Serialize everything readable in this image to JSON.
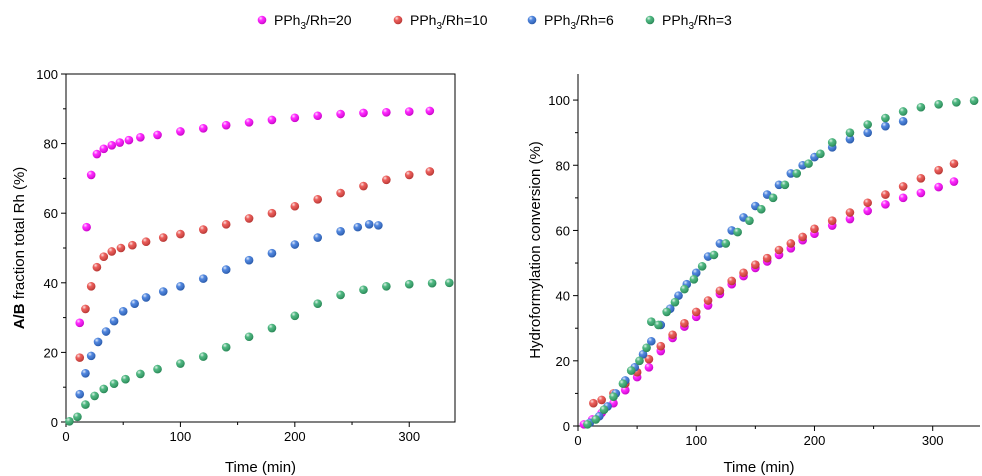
{
  "legend": [
    {
      "base": "PPh",
      "sub": "3",
      "rest": "/Rh=20",
      "color": "#ff00ff"
    },
    {
      "base": "PPh",
      "sub": "3",
      "rest": "/Rh=10",
      "color": "#e8403c"
    },
    {
      "base": "PPh",
      "sub": "3",
      "rest": "/Rh=6",
      "color": "#2f6fd8"
    },
    {
      "base": "PPh",
      "sub": "3",
      "rest": "/Rh=3",
      "color": "#2eaa6a"
    }
  ],
  "chart_data": [
    {
      "type": "scatter",
      "xlabel": "Time (min)",
      "ylabel_bold": "A/B",
      "ylabel_rest": " fraction total Rh (%)",
      "xlim": [
        0,
        340
      ],
      "ylim": [
        0,
        100
      ],
      "xticks": [
        0,
        100,
        200,
        300
      ],
      "yticks": [
        0,
        20,
        40,
        60,
        80,
        100
      ],
      "series": [
        {
          "name": "PPh3/Rh=20",
          "color": "#ff00ff",
          "points": [
            [
              12,
              28.5
            ],
            [
              18,
              56
            ],
            [
              22,
              71
            ],
            [
              27,
              77
            ],
            [
              33,
              78.5
            ],
            [
              40,
              79.5
            ],
            [
              47,
              80.3
            ],
            [
              55,
              81
            ],
            [
              65,
              81.8
            ],
            [
              80,
              82.5
            ],
            [
              100,
              83.5
            ],
            [
              120,
              84.4
            ],
            [
              140,
              85.3
            ],
            [
              160,
              86.1
            ],
            [
              180,
              86.8
            ],
            [
              200,
              87.4
            ],
            [
              220,
              88
            ],
            [
              240,
              88.5
            ],
            [
              260,
              88.8
            ],
            [
              280,
              89
            ],
            [
              300,
              89.2
            ],
            [
              318,
              89.4
            ]
          ]
        },
        {
          "name": "PPh3/Rh=10",
          "color": "#e8403c",
          "points": [
            [
              12,
              18.5
            ],
            [
              17,
              32.5
            ],
            [
              22,
              39
            ],
            [
              27,
              44.5
            ],
            [
              33,
              47.5
            ],
            [
              40,
              49
            ],
            [
              48,
              50
            ],
            [
              58,
              50.8
            ],
            [
              70,
              51.8
            ],
            [
              85,
              53
            ],
            [
              100,
              54
            ],
            [
              120,
              55.3
            ],
            [
              140,
              56.8
            ],
            [
              160,
              58.5
            ],
            [
              180,
              60
            ],
            [
              200,
              62
            ],
            [
              220,
              64
            ],
            [
              240,
              65.8
            ],
            [
              260,
              67.8
            ],
            [
              280,
              69.6
            ],
            [
              300,
              71
            ],
            [
              318,
              72
            ]
          ]
        },
        {
          "name": "PPh3/Rh=6",
          "color": "#2f6fd8",
          "points": [
            [
              12,
              8
            ],
            [
              17,
              14
            ],
            [
              22,
              19
            ],
            [
              28,
              23
            ],
            [
              35,
              26
            ],
            [
              42,
              29
            ],
            [
              50,
              31.8
            ],
            [
              60,
              34
            ],
            [
              70,
              35.8
            ],
            [
              85,
              37.5
            ],
            [
              100,
              39
            ],
            [
              120,
              41.2
            ],
            [
              140,
              43.8
            ],
            [
              160,
              46.5
            ],
            [
              180,
              48.5
            ],
            [
              200,
              51
            ],
            [
              220,
              53
            ],
            [
              240,
              54.8
            ],
            [
              255,
              56
            ],
            [
              265,
              56.8
            ],
            [
              273,
              56.5
            ]
          ]
        },
        {
          "name": "PPh3/Rh=3",
          "color": "#2eaa6a",
          "points": [
            [
              3,
              0.2
            ],
            [
              10,
              1.5
            ],
            [
              17,
              5
            ],
            [
              25,
              7.5
            ],
            [
              33,
              9.5
            ],
            [
              42,
              11
            ],
            [
              52,
              12.3
            ],
            [
              65,
              13.8
            ],
            [
              80,
              15.2
            ],
            [
              100,
              16.8
            ],
            [
              120,
              18.8
            ],
            [
              140,
              21.5
            ],
            [
              160,
              24.5
            ],
            [
              180,
              27
            ],
            [
              200,
              30.5
            ],
            [
              220,
              34
            ],
            [
              240,
              36.5
            ],
            [
              260,
              38
            ],
            [
              280,
              39
            ],
            [
              300,
              39.6
            ],
            [
              320,
              39.9
            ],
            [
              335,
              40
            ]
          ]
        }
      ]
    },
    {
      "type": "scatter",
      "xlabel": "Time (min)",
      "ylabel": "Hydroformylation conversion (%)",
      "xlim": [
        0,
        340
      ],
      "ylim": [
        0,
        108
      ],
      "xticks": [
        0,
        100,
        200,
        300
      ],
      "yticks": [
        0,
        20,
        40,
        60,
        80,
        100
      ],
      "series": [
        {
          "name": "PPh3/Rh=20",
          "color": "#ff00ff",
          "points": [
            [
              5,
              0.5
            ],
            [
              12,
              2
            ],
            [
              20,
              4
            ],
            [
              30,
              7
            ],
            [
              40,
              11
            ],
            [
              50,
              15
            ],
            [
              60,
              18
            ],
            [
              70,
              23
            ],
            [
              80,
              27
            ],
            [
              90,
              30.5
            ],
            [
              100,
              33.5
            ],
            [
              110,
              37
            ],
            [
              120,
              40.5
            ],
            [
              130,
              43.5
            ],
            [
              140,
              46
            ],
            [
              150,
              48.5
            ],
            [
              160,
              50.5
            ],
            [
              170,
              52.5
            ],
            [
              180,
              54.5
            ],
            [
              190,
              57
            ],
            [
              200,
              59
            ],
            [
              215,
              61.5
            ],
            [
              230,
              63.5
            ],
            [
              245,
              66
            ],
            [
              260,
              68
            ],
            [
              275,
              70
            ],
            [
              290,
              71.5
            ],
            [
              305,
              73.3
            ],
            [
              318,
              75
            ]
          ]
        },
        {
          "name": "PPh3/Rh=10",
          "color": "#e8403c",
          "points": [
            [
              13,
              7
            ],
            [
              20,
              8
            ],
            [
              30,
              10
            ],
            [
              40,
              13
            ],
            [
              50,
              16.5
            ],
            [
              60,
              20.5
            ],
            [
              70,
              24.5
            ],
            [
              80,
              28
            ],
            [
              90,
              31.5
            ],
            [
              100,
              35
            ],
            [
              110,
              38.5
            ],
            [
              120,
              41.5
            ],
            [
              130,
              44.5
            ],
            [
              140,
              47
            ],
            [
              150,
              49.5
            ],
            [
              160,
              51.5
            ],
            [
              170,
              54
            ],
            [
              180,
              56
            ],
            [
              190,
              58
            ],
            [
              200,
              60.5
            ],
            [
              215,
              63
            ],
            [
              230,
              65.5
            ],
            [
              245,
              68.5
            ],
            [
              260,
              71
            ],
            [
              275,
              73.5
            ],
            [
              290,
              76
            ],
            [
              305,
              78.5
            ],
            [
              318,
              80.5
            ]
          ]
        },
        {
          "name": "PPh3/Rh=6",
          "color": "#2f6fd8",
          "points": [
            [
              10,
              1
            ],
            [
              18,
              3
            ],
            [
              25,
              6
            ],
            [
              32,
              10
            ],
            [
              40,
              14
            ],
            [
              48,
              18
            ],
            [
              55,
              22
            ],
            [
              62,
              26
            ],
            [
              70,
              31
            ],
            [
              78,
              36
            ],
            [
              85,
              40
            ],
            [
              92,
              43.5
            ],
            [
              100,
              47
            ],
            [
              110,
              52
            ],
            [
              120,
              56
            ],
            [
              130,
              60
            ],
            [
              140,
              64
            ],
            [
              150,
              67.5
            ],
            [
              160,
              71
            ],
            [
              170,
              74
            ],
            [
              180,
              77.5
            ],
            [
              190,
              80
            ],
            [
              200,
              82.5
            ],
            [
              215,
              85.5
            ],
            [
              230,
              88
            ],
            [
              245,
              90
            ],
            [
              260,
              92
            ],
            [
              275,
              93.5
            ]
          ]
        },
        {
          "name": "PPh3/Rh=3",
          "color": "#2eaa6a",
          "points": [
            [
              8,
              0.5
            ],
            [
              15,
              2
            ],
            [
              22,
              5
            ],
            [
              30,
              9
            ],
            [
              38,
              13
            ],
            [
              45,
              17
            ],
            [
              52,
              20
            ],
            [
              58,
              24
            ],
            [
              62,
              32
            ],
            [
              68,
              31
            ],
            [
              75,
              35
            ],
            [
              82,
              38
            ],
            [
              90,
              42
            ],
            [
              98,
              45
            ],
            [
              105,
              49
            ],
            [
              115,
              52.5
            ],
            [
              125,
              56
            ],
            [
              135,
              59.5
            ],
            [
              145,
              63
            ],
            [
              155,
              66.5
            ],
            [
              165,
              70
            ],
            [
              175,
              74
            ],
            [
              185,
              77.5
            ],
            [
              195,
              80.5
            ],
            [
              205,
              83.5
            ],
            [
              215,
              87
            ],
            [
              230,
              90
            ],
            [
              245,
              92.5
            ],
            [
              260,
              94.5
            ],
            [
              275,
              96.5
            ],
            [
              290,
              97.8
            ],
            [
              305,
              98.7
            ],
            [
              320,
              99.3
            ],
            [
              335,
              99.8
            ]
          ]
        }
      ]
    }
  ]
}
